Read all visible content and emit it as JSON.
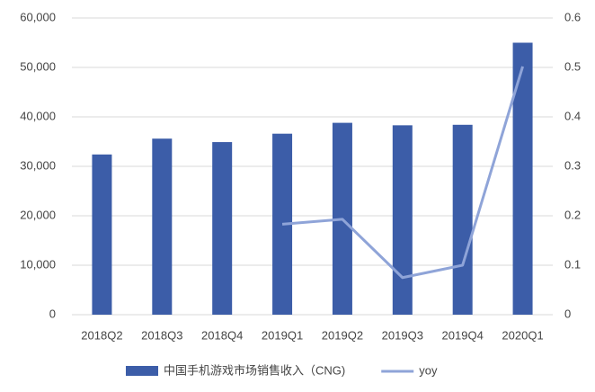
{
  "chart_data": {
    "type": "bar",
    "categories": [
      "2018Q2",
      "2018Q3",
      "2018Q4",
      "2019Q1",
      "2019Q2",
      "2019Q3",
      "2019Q4",
      "2020Q1"
    ],
    "series": [
      {
        "name": "中国手机游戏市场销售收入（CNG)",
        "type": "bar",
        "color": "#3c5da8",
        "values": [
          32400,
          35600,
          34900,
          36600,
          38800,
          38300,
          38400,
          55000
        ]
      },
      {
        "name": "yoy",
        "type": "line",
        "axis": "y2",
        "color": "#8fa4d8",
        "values": [
          null,
          null,
          null,
          0.183,
          0.193,
          0.075,
          0.1,
          0.502
        ]
      }
    ],
    "ylim": [
      0,
      60000
    ],
    "yticks": [
      0,
      {
        "value": 10000,
        "label": "10,000"
      },
      {
        "value": 20000,
        "label": "20,000"
      },
      {
        "value": 30000,
        "label": "30,000"
      },
      {
        "value": 40000,
        "label": "40,000"
      },
      {
        "value": 50000,
        "label": "50,000"
      },
      {
        "value": 60000,
        "label": "60,000"
      }
    ],
    "y2lim": [
      0,
      0.6
    ],
    "y2ticks": [
      0,
      0.1,
      0.2,
      0.3,
      0.4,
      0.5,
      0.6
    ],
    "grid": true
  }
}
